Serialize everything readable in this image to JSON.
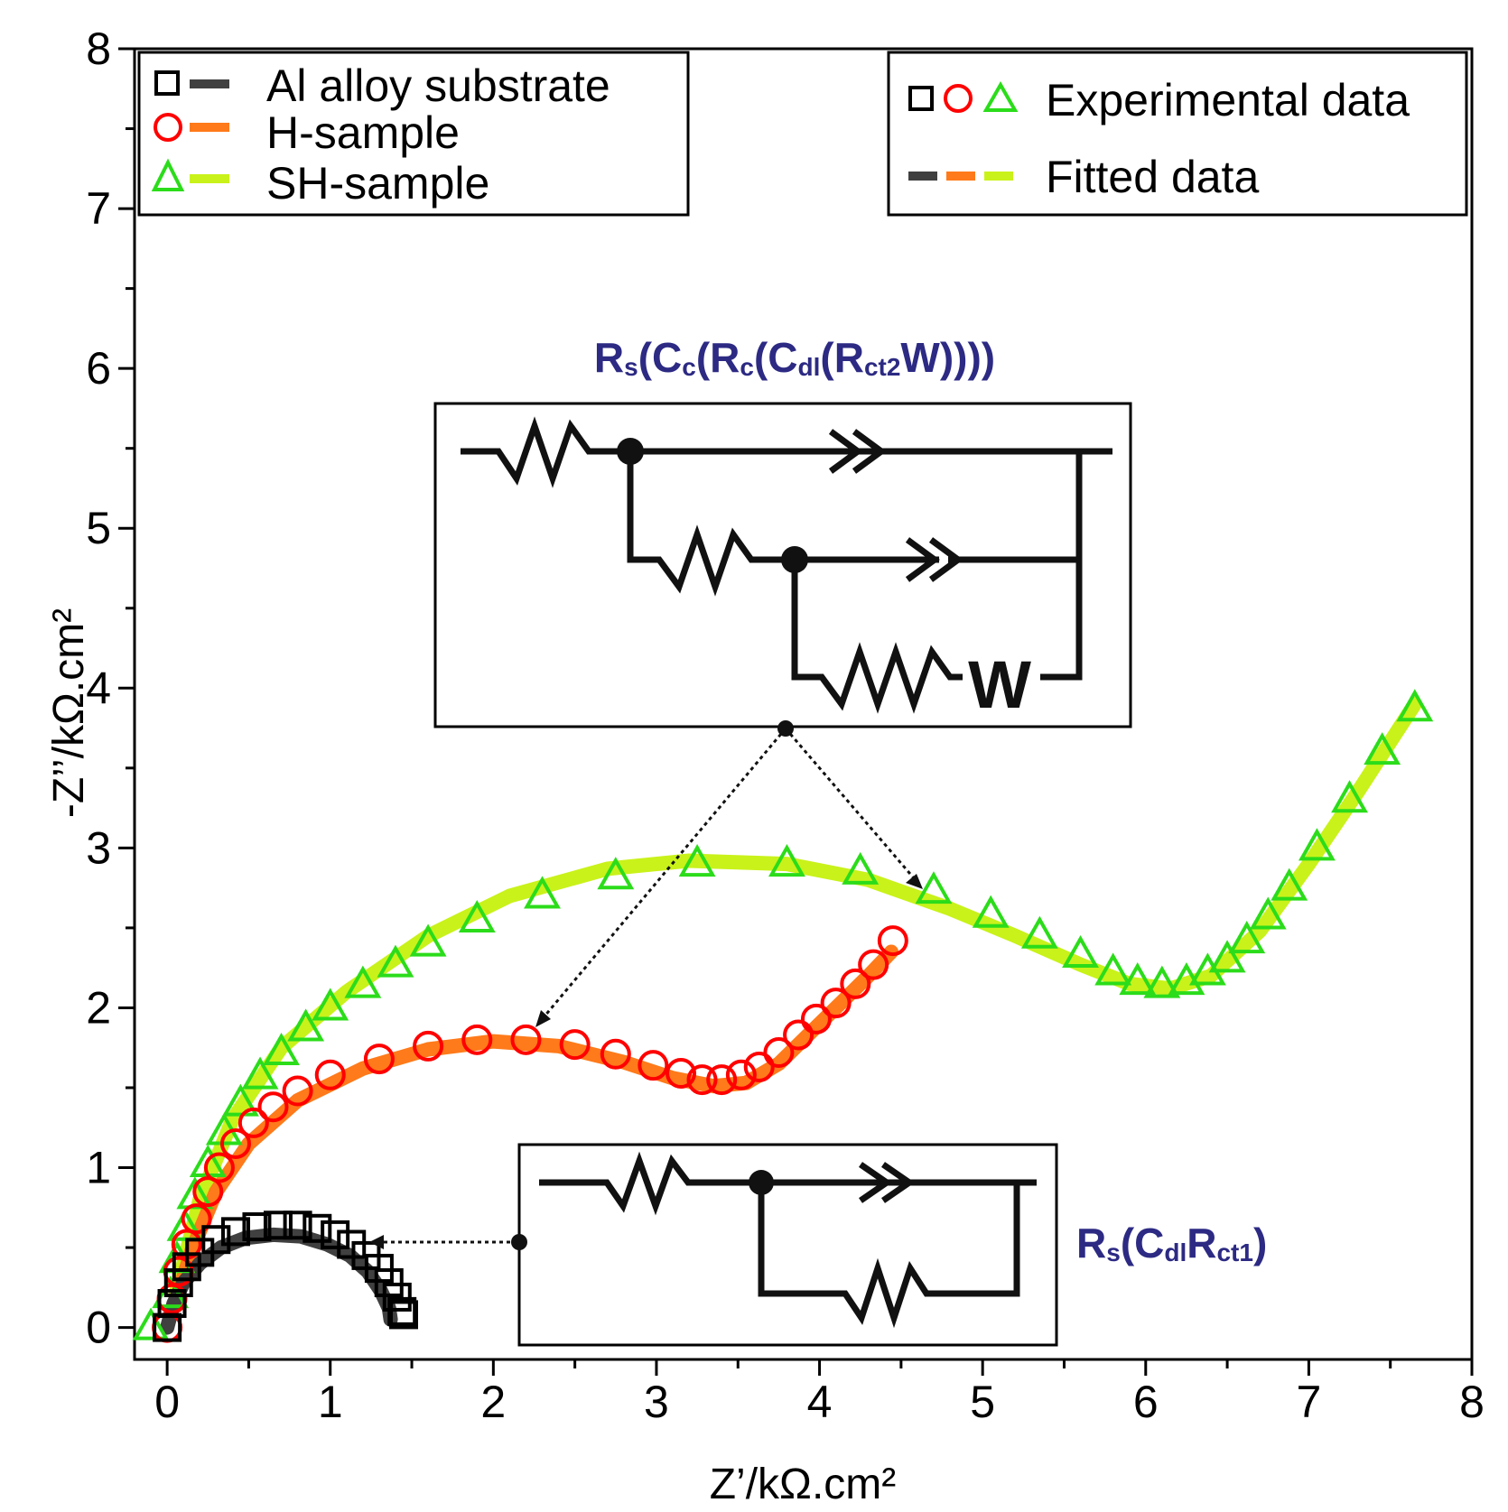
{
  "chart_data": {
    "type": "scatter",
    "xlabel": "Z’/kΩ.cm²",
    "ylabel": "-Z’’/kΩ.cm²",
    "xlim": [
      -0.2,
      8
    ],
    "ylim": [
      -0.2,
      8
    ],
    "xticks": [
      0,
      1,
      2,
      3,
      4,
      5,
      6,
      7,
      8
    ],
    "yticks": [
      0,
      1,
      2,
      3,
      4,
      5,
      6,
      7,
      8
    ],
    "series": [
      {
        "name": "Al alloy substrate",
        "marker": "square",
        "color": "#000000",
        "fit_color": "#404040",
        "experimental": [
          [
            0.0,
            0.0
          ],
          [
            0.03,
            0.15
          ],
          [
            0.07,
            0.28
          ],
          [
            0.12,
            0.38
          ],
          [
            0.2,
            0.47
          ],
          [
            0.3,
            0.55
          ],
          [
            0.42,
            0.6
          ],
          [
            0.55,
            0.63
          ],
          [
            0.68,
            0.64
          ],
          [
            0.8,
            0.64
          ],
          [
            0.92,
            0.62
          ],
          [
            1.03,
            0.58
          ],
          [
            1.13,
            0.52
          ],
          [
            1.22,
            0.45
          ],
          [
            1.3,
            0.37
          ],
          [
            1.36,
            0.28
          ],
          [
            1.41,
            0.19
          ],
          [
            1.44,
            0.1
          ],
          [
            1.45,
            0.08
          ]
        ],
        "fitted": [
          [
            0.0,
            0.0
          ],
          [
            0.04,
            0.15
          ],
          [
            0.1,
            0.28
          ],
          [
            0.2,
            0.4
          ],
          [
            0.33,
            0.5
          ],
          [
            0.48,
            0.56
          ],
          [
            0.65,
            0.58
          ],
          [
            0.82,
            0.57
          ],
          [
            0.98,
            0.52
          ],
          [
            1.12,
            0.45
          ],
          [
            1.23,
            0.35
          ],
          [
            1.31,
            0.23
          ],
          [
            1.36,
            0.12
          ],
          [
            1.37,
            0.05
          ]
        ]
      },
      {
        "name": "H-sample",
        "marker": "circle",
        "color": "#ff0000",
        "fit_color": "#ff7a1a",
        "experimental": [
          [
            0.0,
            0.0
          ],
          [
            0.03,
            0.18
          ],
          [
            0.07,
            0.35
          ],
          [
            0.12,
            0.52
          ],
          [
            0.18,
            0.68
          ],
          [
            0.25,
            0.85
          ],
          [
            0.32,
            1.0
          ],
          [
            0.42,
            1.15
          ],
          [
            0.53,
            1.28
          ],
          [
            0.65,
            1.38
          ],
          [
            0.8,
            1.48
          ],
          [
            1.0,
            1.58
          ],
          [
            1.3,
            1.68
          ],
          [
            1.6,
            1.76
          ],
          [
            1.9,
            1.8
          ],
          [
            2.2,
            1.8
          ],
          [
            2.5,
            1.77
          ],
          [
            2.75,
            1.71
          ],
          [
            2.98,
            1.64
          ],
          [
            3.15,
            1.59
          ],
          [
            3.28,
            1.55
          ],
          [
            3.4,
            1.55
          ],
          [
            3.52,
            1.58
          ],
          [
            3.63,
            1.63
          ],
          [
            3.75,
            1.72
          ],
          [
            3.87,
            1.83
          ],
          [
            3.98,
            1.93
          ],
          [
            4.1,
            2.03
          ],
          [
            4.22,
            2.15
          ],
          [
            4.33,
            2.27
          ],
          [
            4.45,
            2.42
          ]
        ],
        "fitted": [
          [
            0.05,
            0.15
          ],
          [
            0.15,
            0.48
          ],
          [
            0.3,
            0.85
          ],
          [
            0.5,
            1.15
          ],
          [
            0.8,
            1.42
          ],
          [
            1.2,
            1.62
          ],
          [
            1.6,
            1.74
          ],
          [
            2.0,
            1.79
          ],
          [
            2.4,
            1.76
          ],
          [
            2.8,
            1.66
          ],
          [
            3.1,
            1.56
          ],
          [
            3.35,
            1.51
          ],
          [
            3.55,
            1.53
          ],
          [
            3.75,
            1.65
          ],
          [
            3.95,
            1.85
          ],
          [
            4.15,
            2.05
          ],
          [
            4.3,
            2.2
          ],
          [
            4.44,
            2.35
          ]
        ]
      },
      {
        "name": "SH-sample",
        "marker": "triangle",
        "color": "#2bdc1a",
        "fit_color": "#c9f21a",
        "experimental": [
          [
            -0.1,
            0.0
          ],
          [
            0.02,
            0.2
          ],
          [
            0.06,
            0.42
          ],
          [
            0.11,
            0.62
          ],
          [
            0.17,
            0.82
          ],
          [
            0.25,
            1.02
          ],
          [
            0.35,
            1.22
          ],
          [
            0.45,
            1.4
          ],
          [
            0.57,
            1.57
          ],
          [
            0.7,
            1.72
          ],
          [
            0.85,
            1.87
          ],
          [
            1.0,
            2.0
          ],
          [
            1.2,
            2.14
          ],
          [
            1.4,
            2.27
          ],
          [
            1.6,
            2.4
          ],
          [
            1.9,
            2.55
          ],
          [
            2.3,
            2.7
          ],
          [
            2.75,
            2.82
          ],
          [
            3.25,
            2.9
          ],
          [
            3.8,
            2.9
          ],
          [
            4.25,
            2.85
          ],
          [
            4.7,
            2.73
          ],
          [
            5.05,
            2.58
          ],
          [
            5.35,
            2.45
          ],
          [
            5.6,
            2.33
          ],
          [
            5.8,
            2.22
          ],
          [
            5.95,
            2.16
          ],
          [
            6.1,
            2.14
          ],
          [
            6.25,
            2.16
          ],
          [
            6.38,
            2.22
          ],
          [
            6.5,
            2.3
          ],
          [
            6.62,
            2.42
          ],
          [
            6.75,
            2.57
          ],
          [
            6.88,
            2.75
          ],
          [
            7.05,
            3.0
          ],
          [
            7.25,
            3.3
          ],
          [
            7.45,
            3.6
          ],
          [
            7.65,
            3.87
          ]
        ],
        "fitted": [
          [
            0.05,
            0.2
          ],
          [
            0.2,
            0.8
          ],
          [
            0.4,
            1.3
          ],
          [
            0.7,
            1.75
          ],
          [
            1.1,
            2.1
          ],
          [
            1.6,
            2.45
          ],
          [
            2.1,
            2.7
          ],
          [
            2.7,
            2.87
          ],
          [
            3.2,
            2.92
          ],
          [
            3.8,
            2.9
          ],
          [
            4.3,
            2.8
          ],
          [
            4.8,
            2.62
          ],
          [
            5.2,
            2.45
          ],
          [
            5.6,
            2.27
          ],
          [
            5.9,
            2.15
          ],
          [
            6.15,
            2.12
          ],
          [
            6.4,
            2.2
          ],
          [
            6.7,
            2.48
          ],
          [
            7.0,
            2.9
          ],
          [
            7.3,
            3.35
          ],
          [
            7.65,
            3.9
          ]
        ]
      }
    ],
    "legend_series": {
      "placement": "top-left",
      "entries": [
        "Al alloy substrate",
        "H-sample",
        "SH-sample"
      ]
    },
    "legend_types": {
      "placement": "top-right",
      "entries": [
        "Experimental data",
        "Fitted data"
      ]
    },
    "annotations": {
      "circuit_top": {
        "main": [
          "Rs(Cc(Rc(Cdl(Rct2W))))"
        ],
        "runs": [
          [
            "R",
            "main"
          ],
          [
            "s",
            "sub"
          ],
          [
            "(C",
            "main"
          ],
          [
            "c",
            "sub"
          ],
          [
            "(R",
            "main"
          ],
          [
            "c",
            "sub"
          ],
          [
            "(C",
            "main"
          ],
          [
            "dl",
            "sub"
          ],
          [
            "(R",
            "main"
          ],
          [
            "ct2",
            "sub"
          ],
          [
            "W))))",
            "main"
          ]
        ],
        "element_label": "W"
      },
      "circuit_bottom": {
        "main": [
          "Rs(CdlRct1)"
        ],
        "runs": [
          [
            "R",
            "main"
          ],
          [
            "s",
            "sub"
          ],
          [
            "(C",
            "main"
          ],
          [
            "dl",
            "sub"
          ],
          [
            "R",
            "main"
          ],
          [
            "ct1",
            "sub"
          ],
          [
            ")",
            "main"
          ]
        ]
      }
    }
  }
}
